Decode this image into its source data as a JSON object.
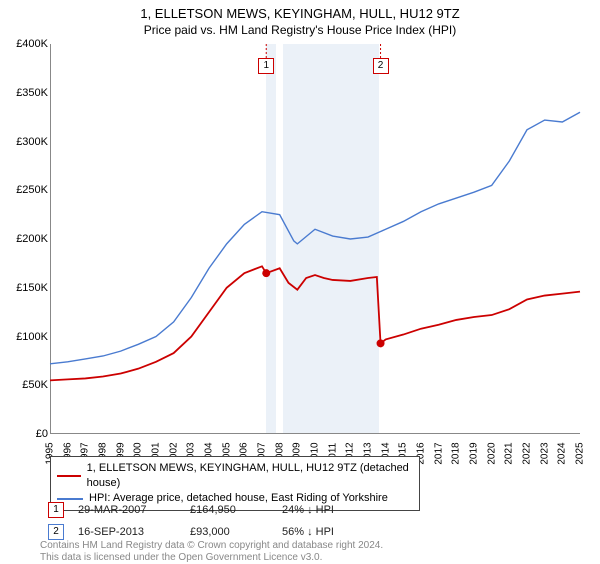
{
  "title": {
    "line1": "1, ELLETSON MEWS, KEYINGHAM, HULL, HU12 9TZ",
    "line2": "Price paid vs. HM Land Registry's House Price Index (HPI)"
  },
  "chart": {
    "type": "line",
    "background_color": "#ffffff",
    "ylim": [
      0,
      400000
    ],
    "ytick_step": 50000,
    "ytick_labels": [
      "£0",
      "£50K",
      "£100K",
      "£150K",
      "£200K",
      "£250K",
      "£300K",
      "£350K",
      "£400K"
    ],
    "xlim": [
      1995,
      2025
    ],
    "xticks": [
      1995,
      1996,
      1997,
      1998,
      1999,
      2000,
      2001,
      2002,
      2003,
      2004,
      2005,
      2006,
      2007,
      2008,
      2009,
      2010,
      2011,
      2012,
      2013,
      2014,
      2015,
      2016,
      2017,
      2018,
      2019,
      2020,
      2021,
      2022,
      2023,
      2024,
      2025
    ],
    "shaded_ranges": [
      {
        "from": 2007.2,
        "to": 2007.8,
        "color": "#e8eef7"
      },
      {
        "from": 2008.2,
        "to": 2013.6,
        "color": "#e8eef7"
      }
    ],
    "series": [
      {
        "name": "property",
        "label": "1, ELLETSON MEWS, KEYINGHAM, HULL, HU12 9TZ (detached house)",
        "color": "#cc0000",
        "line_width": 1.8,
        "points": [
          [
            1995,
            55000
          ],
          [
            1996,
            56000
          ],
          [
            1997,
            57000
          ],
          [
            1998,
            59000
          ],
          [
            1999,
            62000
          ],
          [
            2000,
            67000
          ],
          [
            2001,
            74000
          ],
          [
            2002,
            83000
          ],
          [
            2003,
            100000
          ],
          [
            2004,
            125000
          ],
          [
            2005,
            150000
          ],
          [
            2006,
            165000
          ],
          [
            2007,
            172000
          ],
          [
            2007.24,
            164950
          ],
          [
            2008,
            170000
          ],
          [
            2008.5,
            155000
          ],
          [
            2009,
            148000
          ],
          [
            2009.5,
            160000
          ],
          [
            2010,
            163000
          ],
          [
            2010.5,
            160000
          ],
          [
            2011,
            158000
          ],
          [
            2012,
            157000
          ],
          [
            2013,
            160000
          ],
          [
            2013.5,
            161000
          ],
          [
            2013.71,
            93000
          ],
          [
            2014,
            97000
          ],
          [
            2015,
            102000
          ],
          [
            2016,
            108000
          ],
          [
            2017,
            112000
          ],
          [
            2018,
            117000
          ],
          [
            2019,
            120000
          ],
          [
            2020,
            122000
          ],
          [
            2021,
            128000
          ],
          [
            2022,
            138000
          ],
          [
            2023,
            142000
          ],
          [
            2024,
            144000
          ],
          [
            2025,
            146000
          ]
        ]
      },
      {
        "name": "hpi",
        "label": "HPI: Average price, detached house, East Riding of Yorkshire",
        "color": "#4a7bd0",
        "line_width": 1.4,
        "points": [
          [
            1995,
            72000
          ],
          [
            1996,
            74000
          ],
          [
            1997,
            77000
          ],
          [
            1998,
            80000
          ],
          [
            1999,
            85000
          ],
          [
            2000,
            92000
          ],
          [
            2001,
            100000
          ],
          [
            2002,
            115000
          ],
          [
            2003,
            140000
          ],
          [
            2004,
            170000
          ],
          [
            2005,
            195000
          ],
          [
            2006,
            215000
          ],
          [
            2007,
            228000
          ],
          [
            2008,
            225000
          ],
          [
            2008.8,
            198000
          ],
          [
            2009,
            195000
          ],
          [
            2010,
            210000
          ],
          [
            2011,
            203000
          ],
          [
            2012,
            200000
          ],
          [
            2013,
            202000
          ],
          [
            2014,
            210000
          ],
          [
            2015,
            218000
          ],
          [
            2016,
            228000
          ],
          [
            2017,
            236000
          ],
          [
            2018,
            242000
          ],
          [
            2019,
            248000
          ],
          [
            2020,
            255000
          ],
          [
            2021,
            280000
          ],
          [
            2022,
            312000
          ],
          [
            2023,
            322000
          ],
          [
            2024,
            320000
          ],
          [
            2025,
            330000
          ]
        ]
      }
    ],
    "sale_markers": [
      {
        "id": "1",
        "x": 2007.24,
        "y": 164950,
        "box_color": "#cc0000"
      },
      {
        "id": "2",
        "x": 2013.71,
        "y": 93000,
        "box_color": "#cc0000"
      }
    ]
  },
  "legend": {
    "rows": [
      {
        "color": "#cc0000",
        "label": "1, ELLETSON MEWS, KEYINGHAM, HULL, HU12 9TZ (detached house)"
      },
      {
        "color": "#4a7bd0",
        "label": "HPI: Average price, detached house, East Riding of Yorkshire"
      }
    ]
  },
  "sales_table": {
    "rows": [
      {
        "id": "1",
        "box_color": "#cc0000",
        "date": "29-MAR-2007",
        "price": "£164,950",
        "delta": "24% ↓ HPI"
      },
      {
        "id": "2",
        "box_color": "#4a7bd0",
        "date": "16-SEP-2013",
        "price": "£93,000",
        "delta": "56% ↓ HPI"
      }
    ]
  },
  "footer": {
    "line1": "Contains HM Land Registry data © Crown copyright and database right 2024.",
    "line2": "This data is licensed under the Open Government Licence v3.0."
  }
}
